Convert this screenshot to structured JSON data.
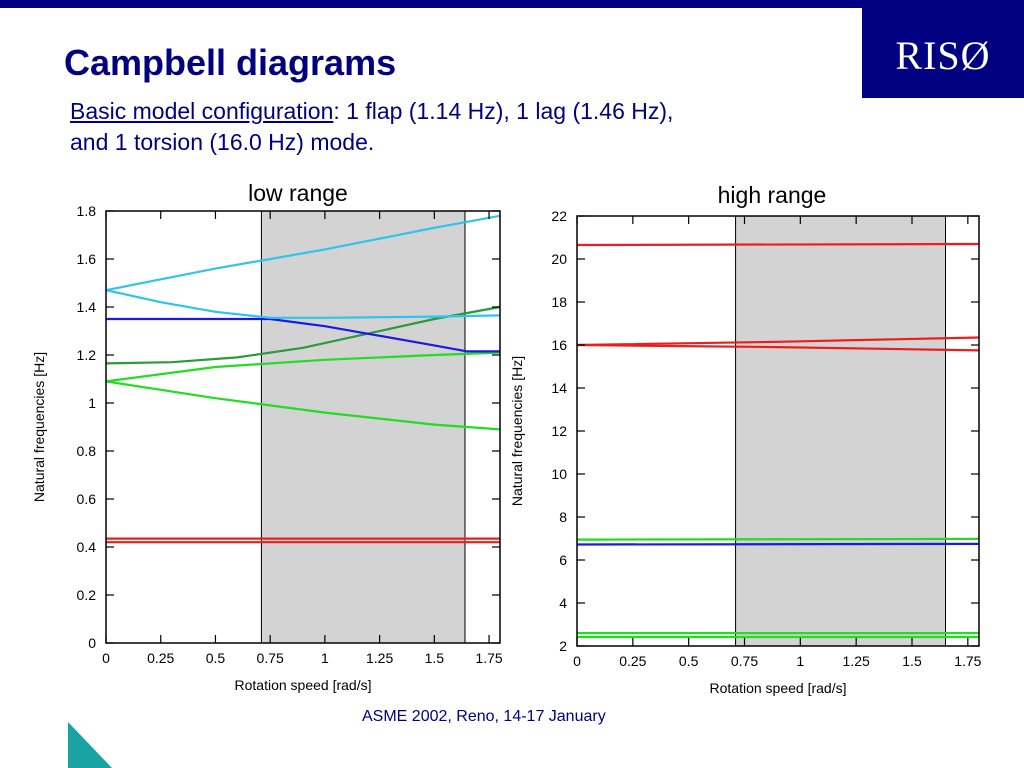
{
  "slide": {
    "title": "Campbell diagrams",
    "subtitle_underlined": "Basic model configuration",
    "subtitle_rest_line1": ": 1 flap (1.14 Hz), 1 lag (1.46 Hz),",
    "subtitle_line2": "and 1 torsion (16.0 Hz) mode.",
    "logo_text": "RISØ",
    "footer": "ASME 2002, Reno, 14-17 January"
  },
  "colors": {
    "brand_navy": "#000080",
    "shade": "#d3d3d3",
    "red": "#ee1c1c",
    "blue": "#1a1ae6",
    "cyan": "#2ec4ee",
    "green": "#22dd22",
    "dark_green": "#2b9a3a"
  },
  "chart_data": [
    {
      "type": "line",
      "title": "low range",
      "xlabel": "Rotation speed [rad/s]",
      "ylabel": "Natural frequencies [Hz]",
      "xlim": [
        0,
        1.8
      ],
      "ylim": [
        0,
        1.8
      ],
      "xticks": [
        0,
        0.25,
        0.5,
        0.75,
        1,
        1.25,
        1.5,
        1.75
      ],
      "xtick_labels": [
        "0",
        "0.25",
        "0.5",
        "0.75",
        "1",
        "1.25",
        "1.5",
        "1.75"
      ],
      "yticks": [
        0,
        0.2,
        0.4,
        0.6,
        0.8,
        1,
        1.2,
        1.4,
        1.6,
        1.8
      ],
      "ytick_labels": [
        "0",
        "0.2",
        "0.4",
        "0.6",
        "0.8",
        "1",
        "1.2",
        "1.4",
        "1.6",
        "1.8"
      ],
      "shaded_range": [
        0.71,
        1.64
      ],
      "series": [
        {
          "color": "red",
          "x": [
            0,
            1.8
          ],
          "y": [
            0.435,
            0.435
          ]
        },
        {
          "color": "red",
          "x": [
            0,
            1.8
          ],
          "y": [
            0.42,
            0.42
          ]
        },
        {
          "color": "green",
          "x": [
            0,
            0.5,
            1,
            1.5,
            1.8
          ],
          "y": [
            1.09,
            1.02,
            0.96,
            0.91,
            0.89
          ]
        },
        {
          "color": "green",
          "x": [
            0,
            0.5,
            1,
            1.5,
            1.8
          ],
          "y": [
            1.09,
            1.15,
            1.18,
            1.2,
            1.21
          ]
        },
        {
          "color": "dark_green",
          "x": [
            0,
            0.3,
            0.6,
            0.9,
            1.2,
            1.5,
            1.8
          ],
          "y": [
            1.165,
            1.17,
            1.19,
            1.23,
            1.29,
            1.35,
            1.4
          ]
        },
        {
          "color": "blue",
          "x": [
            0,
            0.6,
            0.75,
            1,
            1.25,
            1.5,
            1.65,
            1.8
          ],
          "y": [
            1.35,
            1.35,
            1.35,
            1.32,
            1.28,
            1.24,
            1.215,
            1.215
          ]
        },
        {
          "color": "cyan",
          "x": [
            0,
            0.5,
            1,
            1.5,
            1.8
          ],
          "y": [
            1.47,
            1.56,
            1.64,
            1.73,
            1.78
          ]
        },
        {
          "color": "cyan",
          "x": [
            0,
            0.25,
            0.5,
            0.75,
            1,
            1.5,
            1.8
          ],
          "y": [
            1.47,
            1.42,
            1.38,
            1.355,
            1.355,
            1.36,
            1.365
          ]
        }
      ]
    },
    {
      "type": "line",
      "title": "high range",
      "xlabel": "Rotation speed [rad/s]",
      "ylabel": "Natural frequencies [Hz]",
      "xlim": [
        0,
        1.8
      ],
      "ylim": [
        2,
        22
      ],
      "xticks": [
        0,
        0.25,
        0.5,
        0.75,
        1,
        1.25,
        1.5,
        1.75
      ],
      "xtick_labels": [
        "0",
        "0.25",
        "0.5",
        "0.75",
        "1",
        "1.25",
        "1.5",
        "1.75"
      ],
      "yticks": [
        2,
        4,
        6,
        8,
        10,
        12,
        14,
        16,
        18,
        20,
        22
      ],
      "ytick_labels": [
        "2",
        "4",
        "6",
        "8",
        "10",
        "12",
        "14",
        "16",
        "18",
        "20",
        "22"
      ],
      "shaded_range": [
        0.71,
        1.65
      ],
      "series": [
        {
          "color": "red",
          "x": [
            0,
            1.8
          ],
          "y": [
            20.65,
            20.7
          ]
        },
        {
          "color": "red",
          "x": [
            0,
            0.9,
            1.8
          ],
          "y": [
            16.0,
            16.15,
            16.35
          ]
        },
        {
          "color": "red",
          "x": [
            0,
            0.9,
            1.8
          ],
          "y": [
            16.0,
            15.9,
            15.75
          ]
        },
        {
          "color": "green",
          "x": [
            0,
            1.8
          ],
          "y": [
            6.95,
            6.98
          ]
        },
        {
          "color": "blue",
          "x": [
            0,
            1.8
          ],
          "y": [
            6.72,
            6.75
          ]
        },
        {
          "color": "green",
          "x": [
            0,
            1.8
          ],
          "y": [
            2.6,
            2.6
          ]
        },
        {
          "color": "green",
          "x": [
            0,
            1.8
          ],
          "y": [
            2.42,
            2.42
          ]
        }
      ]
    }
  ]
}
